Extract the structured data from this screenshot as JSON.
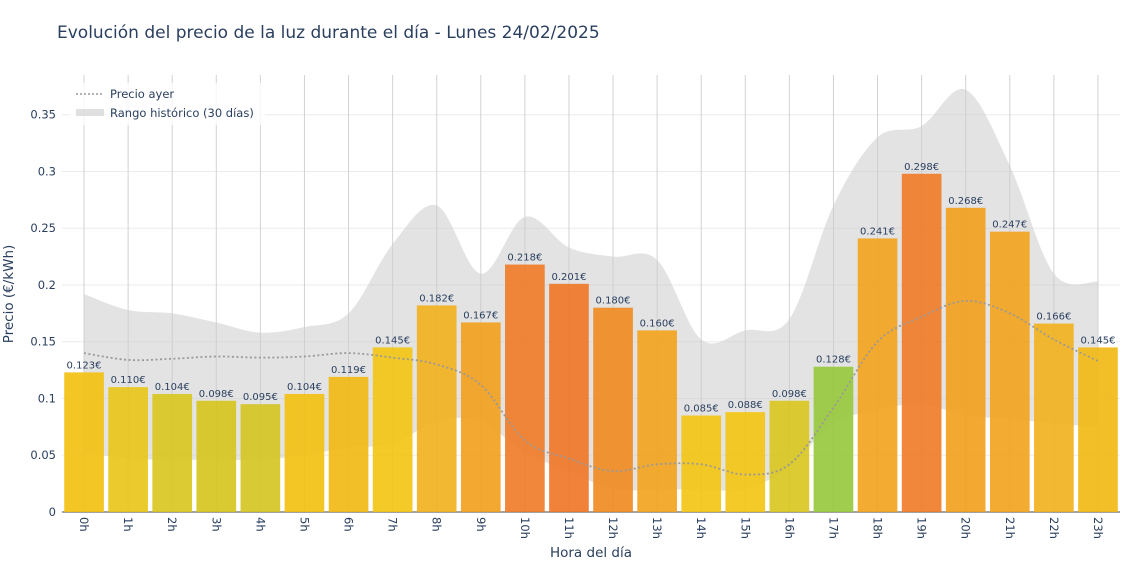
{
  "chart_data": {
    "type": "bar",
    "title": "Evolución del precio de la luz durante el día - Lunes 24/02/2025",
    "xlabel": "Hora del día",
    "ylabel": "Precio (€/kWh)",
    "ylim": [
      0,
      0.385
    ],
    "yticks": [
      0,
      0.05,
      0.1,
      0.15,
      0.2,
      0.25,
      0.3,
      0.35
    ],
    "ytick_labels": [
      "0",
      "0.05",
      "0.1",
      "0.15",
      "0.2",
      "0.25",
      "0.3",
      "0.35"
    ],
    "grid": true,
    "legend_position": "top-left",
    "categories": [
      "0h",
      "1h",
      "2h",
      "3h",
      "4h",
      "5h",
      "6h",
      "7h",
      "8h",
      "9h",
      "10h",
      "11h",
      "12h",
      "13h",
      "14h",
      "15h",
      "16h",
      "17h",
      "18h",
      "19h",
      "20h",
      "21h",
      "22h",
      "23h"
    ],
    "series": [
      {
        "type": "bar",
        "values": [
          0.123,
          0.11,
          0.104,
          0.098,
          0.095,
          0.104,
          0.119,
          0.145,
          0.182,
          0.167,
          0.218,
          0.201,
          0.18,
          0.16,
          0.085,
          0.088,
          0.098,
          0.128,
          0.241,
          0.298,
          0.268,
          0.247,
          0.166,
          0.145
        ],
        "labels": [
          "0.123€",
          "0.110€",
          "0.104€",
          "0.098€",
          "0.095€",
          "0.104€",
          "0.119€",
          "0.145€",
          "0.182€",
          "0.167€",
          "0.218€",
          "0.201€",
          "0.180€",
          "0.160€",
          "0.085€",
          "0.088€",
          "0.098€",
          "0.128€",
          "0.241€",
          "0.298€",
          "0.268€",
          "0.247€",
          "0.166€",
          "0.145€"
        ],
        "colors": [
          "#f2c00e",
          "#e8c416",
          "#d8c51c",
          "#d6c41c",
          "#d4c41e",
          "#f2c00e",
          "#f2b811",
          "#f2c411",
          "#f2b01c",
          "#f29e1c",
          "#f07a25",
          "#ee7425",
          "#f08a1e",
          "#f2a21c",
          "#f2c411",
          "#f2c411",
          "#d8c51c",
          "#96c83a",
          "#f2a21c",
          "#f07a25",
          "#f29e1c",
          "#f2a21c",
          "#f2b01c",
          "#f2b811"
        ]
      },
      {
        "type": "line",
        "name": "Precio ayer",
        "color": "#999999",
        "values": [
          0.14,
          0.134,
          0.135,
          0.137,
          0.136,
          0.137,
          0.14,
          0.136,
          0.13,
          0.112,
          0.063,
          0.047,
          0.036,
          0.042,
          0.042,
          0.033,
          0.042,
          0.092,
          0.15,
          0.172,
          0.186,
          0.175,
          0.152,
          0.133
        ]
      },
      {
        "type": "area-range",
        "name": "Rango histórico (30 días)",
        "color": "#cccccc",
        "upper": [
          0.192,
          0.178,
          0.175,
          0.167,
          0.158,
          0.163,
          0.175,
          0.236,
          0.27,
          0.21,
          0.26,
          0.233,
          0.225,
          0.222,
          0.152,
          0.16,
          0.17,
          0.27,
          0.33,
          0.34,
          0.372,
          0.305,
          0.21,
          0.203
        ],
        "lower": [
          0.053,
          0.047,
          0.046,
          0.046,
          0.046,
          0.05,
          0.057,
          0.06,
          0.08,
          0.08,
          0.052,
          0.036,
          0.02,
          0.02,
          0.02,
          0.02,
          0.04,
          0.078,
          0.09,
          0.095,
          0.085,
          0.082,
          0.078,
          0.075
        ]
      }
    ]
  }
}
